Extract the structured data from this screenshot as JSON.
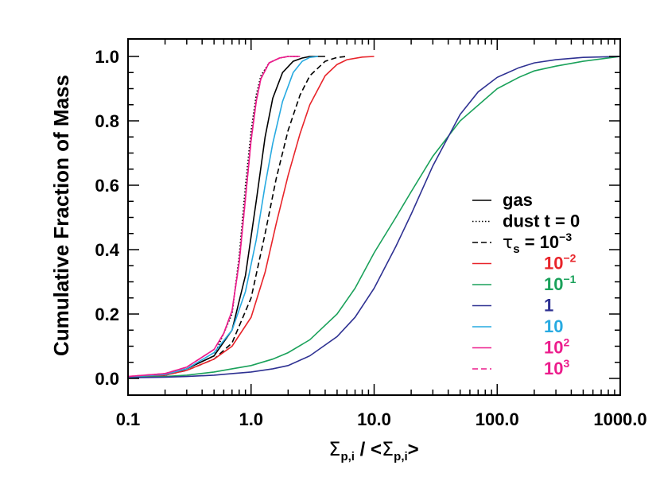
{
  "chart_data": {
    "type": "line",
    "xscale": "log",
    "xlim": [
      0.1,
      1000
    ],
    "ylim": [
      0.0,
      1.0
    ],
    "xlabel": {
      "sigma": "Σ",
      "sub": "p,i",
      "mid": " / <",
      "sigma2": "Σ",
      "sub2": "p,i",
      "end": ">"
    },
    "ylabel": "Cumulative Fraction of Mass",
    "xticks": [
      0.1,
      1,
      10,
      100,
      1000
    ],
    "xtick_labels": [
      "0.1",
      "1.0",
      "10.0",
      "100.0",
      "1000.0"
    ],
    "yticks": [
      0.0,
      0.2,
      0.4,
      0.6,
      0.8,
      1.0
    ],
    "ytick_labels": [
      "0.0",
      "0.2",
      "0.4",
      "0.6",
      "0.8",
      "1.0"
    ],
    "grid": false,
    "legend_position": "right",
    "series": [
      {
        "name": "gas",
        "label_parts": [
          "gas"
        ],
        "color": "#000000",
        "dash": "solid",
        "x": [
          0.1,
          0.2,
          0.3,
          0.5,
          0.7,
          0.9,
          1.1,
          1.3,
          1.5,
          1.8,
          2.2,
          2.6,
          3.0,
          4.0
        ],
        "y": [
          0.005,
          0.01,
          0.03,
          0.07,
          0.15,
          0.32,
          0.55,
          0.75,
          0.87,
          0.95,
          0.985,
          0.995,
          1.0,
          1.0
        ]
      },
      {
        "name": "dust t = 0",
        "label_parts": [
          "dust t = 0"
        ],
        "color": "#000000",
        "dash": "dotted",
        "x": [
          0.1,
          0.2,
          0.3,
          0.5,
          0.7,
          0.8,
          0.9,
          1.0,
          1.1,
          1.2,
          1.4,
          1.7,
          2.0,
          2.5
        ],
        "y": [
          0.005,
          0.01,
          0.03,
          0.07,
          0.2,
          0.38,
          0.6,
          0.77,
          0.88,
          0.94,
          0.98,
          0.995,
          1.0,
          1.0
        ]
      },
      {
        "name": "τs = 10^-3",
        "label_parts": [
          "τ",
          "s",
          " = 10",
          "−3"
        ],
        "color": "#000000",
        "dash": "dashed",
        "x": [
          0.1,
          0.2,
          0.3,
          0.5,
          0.7,
          1.0,
          1.3,
          1.6,
          2.0,
          2.5,
          3.0,
          4.0,
          5.0,
          6.0
        ],
        "y": [
          0.005,
          0.01,
          0.025,
          0.06,
          0.11,
          0.25,
          0.45,
          0.62,
          0.77,
          0.88,
          0.94,
          0.985,
          0.997,
          1.0
        ]
      },
      {
        "name": "10^-2",
        "label_parts": [
          "10",
          "−2"
        ],
        "color": "#e8242a",
        "dash": "solid",
        "x": [
          0.1,
          0.2,
          0.3,
          0.5,
          0.7,
          1.0,
          1.3,
          1.6,
          2.0,
          2.5,
          3.0,
          4.0,
          5.0,
          6.0,
          8.0,
          10.0
        ],
        "y": [
          0.005,
          0.01,
          0.025,
          0.06,
          0.1,
          0.19,
          0.33,
          0.48,
          0.63,
          0.76,
          0.85,
          0.94,
          0.975,
          0.99,
          0.998,
          1.0
        ]
      },
      {
        "name": "10^-1",
        "label_parts": [
          "10",
          "−1"
        ],
        "color": "#1aa15a",
        "dash": "solid",
        "x": [
          0.1,
          0.2,
          0.3,
          0.5,
          0.7,
          1.0,
          1.5,
          2.0,
          3.0,
          5.0,
          7.0,
          10.0,
          15.0,
          20.0,
          30.0,
          50.0,
          100.0,
          150.0,
          200.0,
          300.0,
          500.0,
          1000.0
        ],
        "y": [
          0.003,
          0.006,
          0.01,
          0.02,
          0.03,
          0.04,
          0.06,
          0.08,
          0.12,
          0.2,
          0.28,
          0.39,
          0.5,
          0.58,
          0.69,
          0.8,
          0.9,
          0.935,
          0.955,
          0.97,
          0.985,
          1.0
        ]
      },
      {
        "name": "1",
        "label_parts": [
          "1"
        ],
        "color": "#2e3192",
        "dash": "solid",
        "x": [
          0.1,
          0.2,
          0.3,
          0.5,
          0.7,
          1.0,
          1.5,
          2.0,
          3.0,
          5.0,
          7.0,
          10.0,
          15.0,
          20.0,
          30.0,
          50.0,
          70.0,
          100.0,
          150.0,
          200.0,
          300.0,
          500.0,
          1000.0
        ],
        "y": [
          0.002,
          0.004,
          0.006,
          0.01,
          0.015,
          0.02,
          0.03,
          0.04,
          0.07,
          0.13,
          0.19,
          0.28,
          0.41,
          0.51,
          0.66,
          0.82,
          0.89,
          0.935,
          0.965,
          0.98,
          0.99,
          0.997,
          1.0
        ]
      },
      {
        "name": "10",
        "label_parts": [
          "10"
        ],
        "color": "#27aae1",
        "dash": "solid",
        "x": [
          0.1,
          0.2,
          0.3,
          0.5,
          0.7,
          0.9,
          1.1,
          1.3,
          1.5,
          1.8,
          2.2,
          2.6,
          3.0,
          3.5
        ],
        "y": [
          0.005,
          0.012,
          0.03,
          0.08,
          0.15,
          0.27,
          0.43,
          0.6,
          0.73,
          0.86,
          0.95,
          0.985,
          0.997,
          1.0
        ]
      },
      {
        "name": "10^2",
        "label_parts": [
          "10",
          "2"
        ],
        "color": "#ec1c8c",
        "dash": "solid",
        "x": [
          0.1,
          0.2,
          0.3,
          0.5,
          0.6,
          0.7,
          0.8,
          0.9,
          1.0,
          1.1,
          1.2,
          1.4,
          1.7,
          2.0,
          2.5
        ],
        "y": [
          0.006,
          0.015,
          0.035,
          0.09,
          0.14,
          0.21,
          0.36,
          0.56,
          0.74,
          0.86,
          0.93,
          0.98,
          0.995,
          1.0,
          1.0
        ]
      },
      {
        "name": "10^3",
        "label_parts": [
          "10",
          "3"
        ],
        "color": "#ec1c8c",
        "dash": "dashed",
        "x": [
          0.1,
          0.2,
          0.3,
          0.5,
          0.6,
          0.7,
          0.8,
          0.9,
          1.0,
          1.1,
          1.2,
          1.4,
          1.7,
          2.0,
          2.5
        ],
        "y": [
          0.006,
          0.015,
          0.035,
          0.09,
          0.14,
          0.21,
          0.36,
          0.56,
          0.74,
          0.86,
          0.93,
          0.98,
          0.995,
          1.0,
          1.0
        ]
      }
    ]
  }
}
